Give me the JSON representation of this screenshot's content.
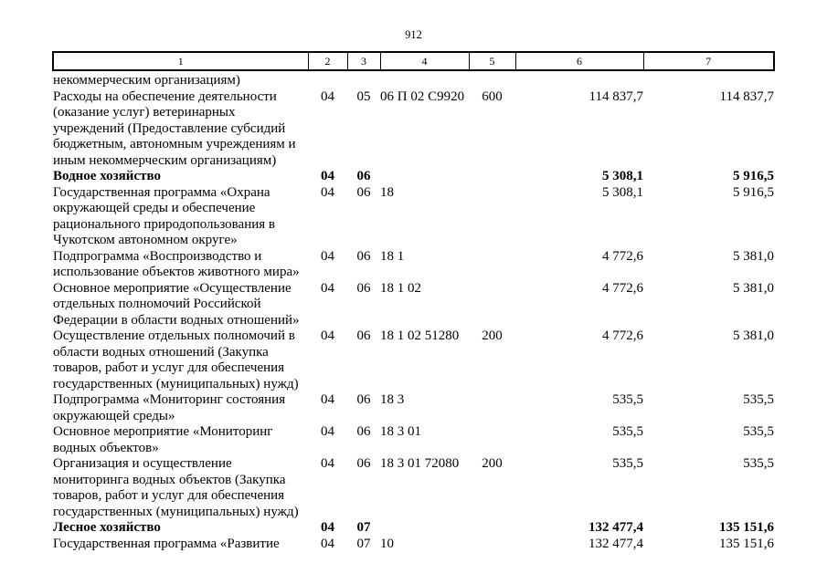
{
  "page_number": "912",
  "table": {
    "header": [
      "1",
      "2",
      "3",
      "4",
      "5",
      "6",
      "7"
    ],
    "rows": [
      {
        "c1": "некоммерческим организациям)",
        "c2": "",
        "c3": "",
        "c4": "",
        "c5": "",
        "c6": "",
        "c7": "",
        "bold": false
      },
      {
        "c1": "Расходы на обеспечение деятельности\n(оказание услуг) ветеринарных\nучреждений (Предоставление субсидий\nбюджетным, автономным учреждениям и\nиным некоммерческим организациям)",
        "c2": "04",
        "c3": "05",
        "c4": "06 П 02 С9920",
        "c5": "600",
        "c6": "114 837,7",
        "c7": "114 837,7",
        "bold": false
      },
      {
        "c1": "Водное хозяйство",
        "c2": "04",
        "c3": "06",
        "c4": "",
        "c5": "",
        "c6": "5 308,1",
        "c7": "5 916,5",
        "bold": true
      },
      {
        "c1": "Государственная программа «Охрана\nокружающей среды и обеспечение\nрационального природопользования в\nЧукотском автономном округе»",
        "c2": "04",
        "c3": "06",
        "c4": "18",
        "c5": "",
        "c6": "5 308,1",
        "c7": "5 916,5",
        "bold": false
      },
      {
        "c1": "Подпрограмма «Воспроизводство и\nиспользование объектов животного мира»",
        "c2": "04",
        "c3": "06",
        "c4": "18 1",
        "c5": "",
        "c6": "4 772,6",
        "c7": "5 381,0",
        "bold": false
      },
      {
        "c1": "Основное мероприятие «Осуществление\nотдельных полномочий Российской\nФедерации в области водных отношений»",
        "c2": "04",
        "c3": "06",
        "c4": "18 1 02",
        "c5": "",
        "c6": "4 772,6",
        "c7": "5 381,0",
        "bold": false
      },
      {
        "c1": "Осуществление отдельных полномочий в\nобласти водных отношений (Закупка\nтоваров, работ и услуг для обеспечения\nгосударственных (муниципальных) нужд)",
        "c2": "04",
        "c3": "06",
        "c4": "18 1 02 51280",
        "c5": "200",
        "c6": "4 772,6",
        "c7": "5 381,0",
        "bold": false
      },
      {
        "c1": "Подпрограмма «Мониторинг состояния\nокружающей среды»",
        "c2": "04",
        "c3": "06",
        "c4": "18 3",
        "c5": "",
        "c6": "535,5",
        "c7": "535,5",
        "bold": false
      },
      {
        "c1": "Основное мероприятие «Мониторинг\nводных объектов»",
        "c2": "04",
        "c3": "06",
        "c4": "18 3 01",
        "c5": "",
        "c6": "535,5",
        "c7": "535,5",
        "bold": false
      },
      {
        "c1": "Организация и осуществление\nмониторинга водных объектов (Закупка\nтоваров, работ и услуг для обеспечения\nгосударственных (муниципальных) нужд)",
        "c2": "04",
        "c3": "06",
        "c4": "18 3 01 72080",
        "c5": "200",
        "c6": "535,5",
        "c7": "535,5",
        "bold": false
      },
      {
        "c1": "Лесное хозяйство",
        "c2": "04",
        "c3": "07",
        "c4": "",
        "c5": "",
        "c6": "132 477,4",
        "c7": "135 151,6",
        "bold": true
      },
      {
        "c1": "Государственная программа «Развитие",
        "c2": "04",
        "c3": "07",
        "c4": "10",
        "c5": "",
        "c6": "132 477,4",
        "c7": "135 151,6",
        "bold": false
      }
    ]
  }
}
